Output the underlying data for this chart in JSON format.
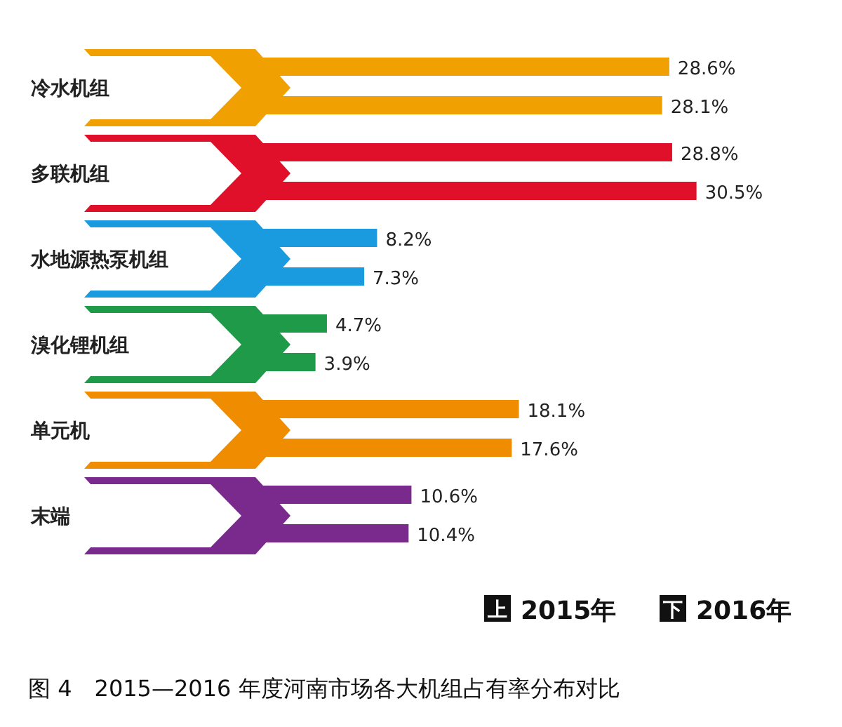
{
  "chart_data": {
    "type": "bar",
    "orientation": "horizontal",
    "title": "图 4　2015—2016 年度河南市场各大机组占有率分布对比",
    "categories": [
      "冷水机组",
      "多联机组",
      "水地源热泵机组",
      "溴化锂机组",
      "单元机",
      "末端"
    ],
    "series": [
      {
        "name": "2015年",
        "colors": [
          "#f0a000",
          "#e0102a",
          "#1a9be0",
          "#1e9a48",
          "#f08c00",
          "#7a2a8c"
        ],
        "values": [
          28.6,
          28.8,
          8.2,
          4.7,
          18.1,
          10.6
        ],
        "value_labels": [
          "28.6%",
          "28.8%",
          "8.2%",
          "4.7%",
          "18.1%",
          "10.6%"
        ]
      },
      {
        "name": "2016年",
        "colors": [
          "#f0a000",
          "#e0102a",
          "#1a9be0",
          "#1e9a48",
          "#f08c00",
          "#7a2a8c"
        ],
        "values": [
          28.1,
          30.5,
          7.3,
          3.9,
          17.6,
          10.4
        ],
        "value_labels": [
          "28.1%",
          "30.5%",
          "7.3%",
          "3.9%",
          "17.6%",
          "10.4%"
        ]
      }
    ],
    "annotations": [
      "上",
      "下"
    ],
    "legend": "bottom right"
  }
}
